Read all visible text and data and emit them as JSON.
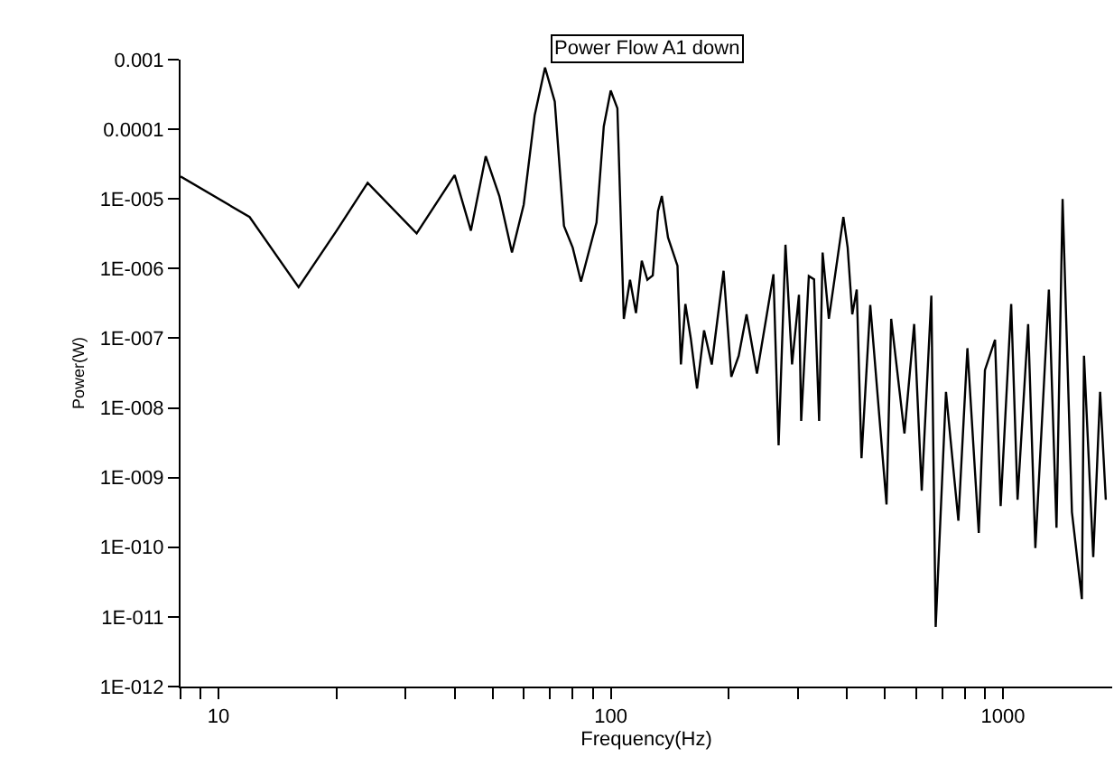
{
  "chart_data": {
    "type": "line",
    "title": "Power Flow A1 down",
    "xlabel": "Frequency(Hz)",
    "ylabel": "Power(W)",
    "log": "xy",
    "legend": false,
    "marker": "none",
    "line_style": "solid",
    "xlim": [
      8,
      1900
    ],
    "ylim": [
      1e-12,
      0.001
    ],
    "xticks": [
      {
        "value": 8,
        "label": null
      },
      {
        "value": 9,
        "label": null
      },
      10,
      {
        "value": 20,
        "label": null
      },
      {
        "value": 30,
        "label": null
      },
      {
        "value": 40,
        "label": null
      },
      {
        "value": 50,
        "label": null
      },
      {
        "value": 60,
        "label": null
      },
      {
        "value": 70,
        "label": null
      },
      {
        "value": 80,
        "label": null
      },
      {
        "value": 90,
        "label": null
      },
      100,
      {
        "value": 200,
        "label": null
      },
      {
        "value": 300,
        "label": null
      },
      {
        "value": 400,
        "label": null
      },
      {
        "value": 500,
        "label": null
      },
      {
        "value": 600,
        "label": null
      },
      {
        "value": 700,
        "label": null
      },
      {
        "value": 800,
        "label": null
      },
      {
        "value": 900,
        "label": null
      },
      1000
    ],
    "yticks": [
      {
        "value": 1e-12,
        "label": "1E-012"
      },
      {
        "value": 1e-11,
        "label": "1E-011"
      },
      {
        "value": 1e-10,
        "label": "1E-010"
      },
      {
        "value": 1e-09,
        "label": "1E-009"
      },
      {
        "value": 1e-08,
        "label": "1E-008"
      },
      {
        "value": 1e-07,
        "label": "1E-007"
      },
      {
        "value": 1e-06,
        "label": "1E-006"
      },
      {
        "value": 1e-05,
        "label": "1E-005"
      },
      {
        "value": 0.0001,
        "label": "0.0001"
      },
      {
        "value": 0.001,
        "label": "0.001"
      }
    ],
    "series": [
      {
        "color": "#000000",
        "x": [
          8,
          12,
          16,
          20,
          24,
          32,
          40,
          44,
          48,
          52,
          56,
          60,
          64,
          68,
          72,
          76,
          80,
          84,
          92,
          96,
          100,
          104,
          108,
          112,
          116,
          120,
          124,
          128,
          132,
          135,
          140,
          148,
          151,
          155,
          160,
          166,
          173,
          181,
          194,
          203,
          212,
          222,
          236,
          249,
          260,
          268,
          279,
          290,
          302,
          306,
          320,
          330,
          340,
          347,
          360,
          392,
          402,
          413,
          424,
          436,
          459,
          505,
          519,
          561,
          594,
          621,
          657,
          674,
          716,
          770,
          812,
          868,
          900,
          955,
          987,
          1050,
          1090,
          1160,
          1210,
          1310,
          1370,
          1420,
          1500,
          1590,
          1610,
          1700,
          1770,
          1830
        ],
        "values": [
          2.1e-05,
          5.5e-06,
          5.4e-07,
          3.5e-06,
          1.7e-05,
          3.2e-06,
          2.2e-05,
          3.5e-06,
          4.1e-05,
          1.1e-05,
          1.7e-06,
          8.3e-06,
          0.00016,
          0.00077,
          0.00025,
          4.1e-06,
          2e-06,
          6.5e-07,
          4.6e-06,
          0.00011,
          0.00036,
          0.0002,
          1.9e-07,
          6.9e-07,
          2.3e-07,
          1.3e-06,
          6.9e-07,
          8e-07,
          6.7e-06,
          1.1e-05,
          2.8e-06,
          1.1e-06,
          4.2e-08,
          3.1e-07,
          1e-07,
          1.9e-08,
          1.3e-07,
          4.2e-08,
          9.3e-07,
          2.8e-08,
          5.6e-08,
          2.2e-07,
          3.1e-08,
          1.9e-07,
          8.3e-07,
          2.9e-09,
          2.2e-06,
          4.2e-08,
          4.2e-07,
          6.5e-09,
          7.8e-07,
          7e-07,
          6.5e-09,
          1.7e-06,
          1.9e-07,
          5.5e-06,
          2e-06,
          2.2e-07,
          5e-07,
          1.9e-09,
          3e-07,
          4.1e-10,
          1.9e-07,
          4.3e-09,
          1.6e-07,
          6.5e-10,
          4.1e-07,
          7.2e-12,
          1.7e-08,
          2.4e-10,
          7.2e-08,
          1.6e-10,
          3.5e-08,
          9.5e-08,
          3.9e-10,
          3.1e-07,
          4.8e-10,
          1.6e-07,
          9.7e-11,
          5e-07,
          1.9e-10,
          1e-05,
          3.2e-10,
          1.8e-11,
          5.6e-08,
          7.2e-11,
          1.7e-08,
          4.8e-10
        ]
      }
    ]
  }
}
